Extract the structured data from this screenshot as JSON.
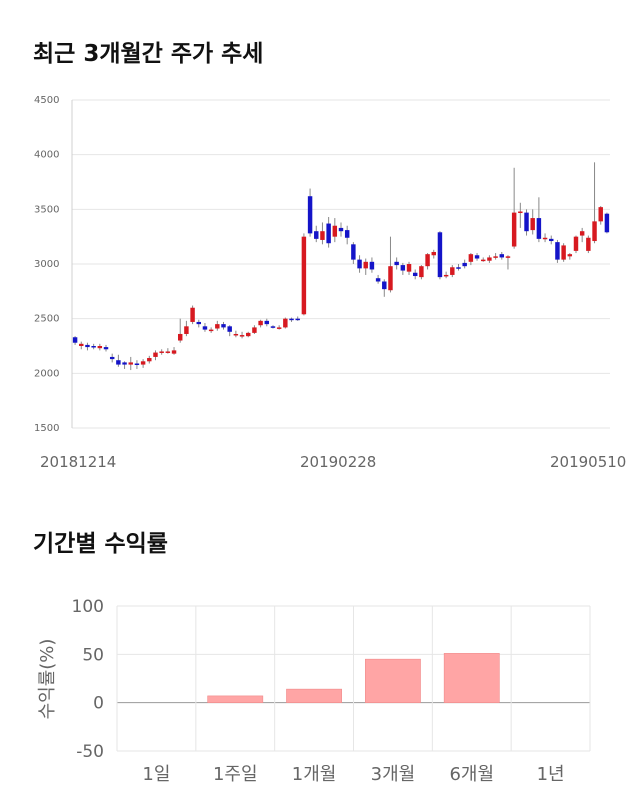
{
  "sections": {
    "price_title": "최근 3개월간 주가 추세",
    "return_title": "기간별 수익률"
  },
  "colors": {
    "up": "#d71920",
    "down": "#1414c8",
    "bar": "#ffa5a5",
    "grid": "#e6e6e6"
  },
  "chart_data": [
    {
      "type": "candlestick",
      "title": "최근 3개월간 주가 추세",
      "ylim": [
        1500,
        4500
      ],
      "y_ticks": [
        "1500",
        "2000",
        "2500",
        "3000",
        "3500",
        "4000",
        "4500"
      ],
      "x_labels": [
        "20181214",
        "20190228",
        "20190510"
      ],
      "candles": [
        [
          2330,
          2280,
          2340,
          2260
        ],
        [
          2250,
          2270,
          2290,
          2220
        ],
        [
          2260,
          2240,
          2280,
          2210
        ],
        [
          2250,
          2240,
          2270,
          2220
        ],
        [
          2230,
          2250,
          2270,
          2210
        ],
        [
          2240,
          2220,
          2260,
          2200
        ],
        [
          2150,
          2130,
          2180,
          2100
        ],
        [
          2120,
          2080,
          2170,
          2060
        ],
        [
          2100,
          2080,
          2110,
          2040
        ],
        [
          2080,
          2100,
          2150,
          2030
        ],
        [
          2090,
          2080,
          2120,
          2040
        ],
        [
          2080,
          2110,
          2130,
          2050
        ],
        [
          2110,
          2140,
          2160,
          2090
        ],
        [
          2150,
          2190,
          2210,
          2120
        ],
        [
          2190,
          2200,
          2220,
          2170
        ],
        [
          2200,
          2200,
          2230,
          2180
        ],
        [
          2180,
          2210,
          2240,
          2170
        ],
        [
          2300,
          2360,
          2500,
          2280
        ],
        [
          2360,
          2430,
          2480,
          2340
        ],
        [
          2470,
          2600,
          2620,
          2450
        ],
        [
          2470,
          2450,
          2490,
          2420
        ],
        [
          2430,
          2400,
          2460,
          2380
        ],
        [
          2390,
          2400,
          2420,
          2370
        ],
        [
          2410,
          2450,
          2480,
          2390
        ],
        [
          2450,
          2420,
          2470,
          2400
        ],
        [
          2430,
          2380,
          2440,
          2340
        ],
        [
          2360,
          2360,
          2390,
          2330
        ],
        [
          2350,
          2350,
          2380,
          2320
        ],
        [
          2340,
          2370,
          2380,
          2330
        ],
        [
          2370,
          2420,
          2440,
          2360
        ],
        [
          2440,
          2480,
          2490,
          2420
        ],
        [
          2480,
          2450,
          2500,
          2430
        ],
        [
          2430,
          2420,
          2440,
          2410
        ],
        [
          2420,
          2420,
          2440,
          2400
        ],
        [
          2420,
          2500,
          2510,
          2410
        ],
        [
          2500,
          2490,
          2510,
          2470
        ],
        [
          2500,
          2490,
          2520,
          2480
        ],
        [
          2540,
          3250,
          3280,
          2530
        ],
        [
          3620,
          3280,
          3690,
          3250
        ],
        [
          3300,
          3230,
          3350,
          3200
        ],
        [
          3220,
          3300,
          3380,
          3180
        ],
        [
          3370,
          3190,
          3430,
          3150
        ],
        [
          3250,
          3350,
          3420,
          3200
        ],
        [
          3330,
          3300,
          3380,
          3250
        ],
        [
          3310,
          3240,
          3350,
          3180
        ],
        [
          3180,
          3040,
          3200,
          3000
        ],
        [
          3040,
          2960,
          3080,
          2920
        ],
        [
          2960,
          3020,
          3050,
          2900
        ],
        [
          3020,
          2950,
          3060,
          2920
        ],
        [
          2870,
          2840,
          2900,
          2820
        ],
        [
          2840,
          2770,
          2860,
          2700
        ],
        [
          2760,
          2980,
          3250,
          2740
        ],
        [
          3020,
          2990,
          3060,
          2950
        ],
        [
          2990,
          2940,
          3010,
          2900
        ],
        [
          2930,
          3000,
          3020,
          2900
        ],
        [
          2920,
          2890,
          2950,
          2860
        ],
        [
          2880,
          2980,
          2990,
          2860
        ],
        [
          2980,
          3090,
          3100,
          2950
        ],
        [
          3080,
          3110,
          3130,
          3050
        ],
        [
          3290,
          2880,
          3300,
          2860
        ],
        [
          2900,
          2900,
          2930,
          2870
        ],
        [
          2900,
          2970,
          2990,
          2880
        ],
        [
          2970,
          2960,
          3000,
          2940
        ],
        [
          3010,
          2980,
          3040,
          2960
        ],
        [
          3020,
          3090,
          3100,
          2990
        ],
        [
          3080,
          3050,
          3100,
          3030
        ],
        [
          3040,
          3040,
          3060,
          3020
        ],
        [
          3030,
          3060,
          3080,
          3010
        ],
        [
          3060,
          3070,
          3100,
          3040
        ],
        [
          3090,
          3060,
          3110,
          3040
        ],
        [
          3060,
          3070,
          3080,
          2950
        ],
        [
          3160,
          3470,
          3880,
          3140
        ],
        [
          3470,
          3480,
          3560,
          3330
        ],
        [
          3470,
          3300,
          3500,
          3260
        ],
        [
          3310,
          3420,
          3500,
          3270
        ],
        [
          3420,
          3230,
          3610,
          3200
        ],
        [
          3240,
          3240,
          3280,
          3200
        ],
        [
          3230,
          3210,
          3260,
          3180
        ],
        [
          3200,
          3040,
          3220,
          3010
        ],
        [
          3040,
          3170,
          3190,
          3020
        ],
        [
          3070,
          3090,
          3100,
          3040
        ],
        [
          3120,
          3250,
          3260,
          3100
        ],
        [
          3260,
          3300,
          3330,
          3200
        ],
        [
          3120,
          3240,
          3260,
          3100
        ],
        [
          3210,
          3390,
          3930,
          3190
        ],
        [
          3390,
          3520,
          3530,
          3360
        ],
        [
          3460,
          3290,
          3470,
          3280
        ]
      ]
    },
    {
      "type": "bar",
      "title": "기간별 수익률",
      "ylabel": "수익률(%)",
      "ylim": [
        -50,
        100
      ],
      "y_ticks": [
        "100",
        "50",
        "0",
        "-50"
      ],
      "categories": [
        "1일",
        "1주일",
        "1개월",
        "3개월",
        "6개월",
        "1년"
      ],
      "values": [
        0,
        7,
        14,
        45,
        51,
        0
      ]
    }
  ]
}
